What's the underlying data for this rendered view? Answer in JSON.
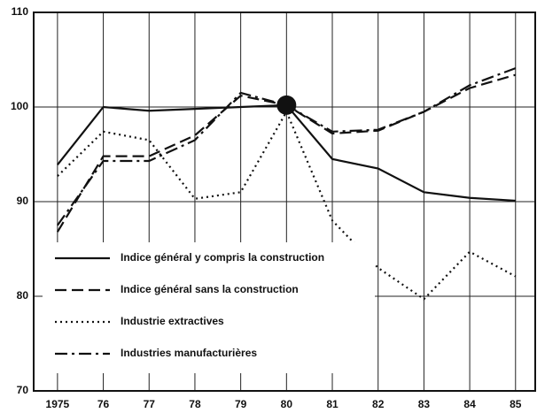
{
  "chart_data": {
    "type": "line",
    "x": [
      1975,
      1976,
      1977,
      1978,
      1979,
      1980,
      1981,
      1982,
      1983,
      1984,
      1985
    ],
    "xlim": [
      1974.48,
      1985.43
    ],
    "xticks": [
      {
        "value": 1975,
        "label": "1975"
      },
      {
        "value": 1976,
        "label": "76"
      },
      {
        "value": 1977,
        "label": "77"
      },
      {
        "value": 1978,
        "label": "78"
      },
      {
        "value": 1979,
        "label": "79"
      },
      {
        "value": 1980,
        "label": "80"
      },
      {
        "value": 1981,
        "label": "81"
      },
      {
        "value": 1982,
        "label": "82"
      },
      {
        "value": 1983,
        "label": "83"
      },
      {
        "value": 1984,
        "label": "84"
      },
      {
        "value": 1985,
        "label": "85"
      }
    ],
    "ylim": [
      70,
      110
    ],
    "yticks": [
      70,
      80,
      90,
      100,
      110
    ],
    "grid": true,
    "legend": "lower left",
    "series": [
      {
        "name": "Indice général y compris la construction",
        "color": "#111111",
        "linestyle": "solid",
        "values": [
          93.9,
          100,
          99.6,
          99.8,
          100,
          100.2,
          94.5,
          93.5,
          91,
          90.4,
          90.1
        ]
      },
      {
        "name": "Indice général sans la construction",
        "color": "#111111",
        "linestyle": "dashed",
        "values": [
          86.8,
          94.8,
          94.8,
          97,
          101.2,
          100.2,
          97.2,
          97.5,
          99.5,
          102,
          103.4
        ]
      },
      {
        "name": "Industrie extractives",
        "color": "#111111",
        "linestyle": "dotted",
        "values": [
          92.7,
          97.4,
          96.5,
          90.3,
          91,
          99.5,
          88,
          83,
          79.7,
          84.7,
          82.1
        ]
      },
      {
        "name": "Industries manufacturières",
        "color": "#111111",
        "linestyle": "dashdot",
        "values": [
          87.5,
          94.3,
          94.3,
          96.5,
          101.5,
          100.2,
          97.4,
          97.6,
          99.5,
          102.3,
          104.1
        ]
      }
    ]
  }
}
